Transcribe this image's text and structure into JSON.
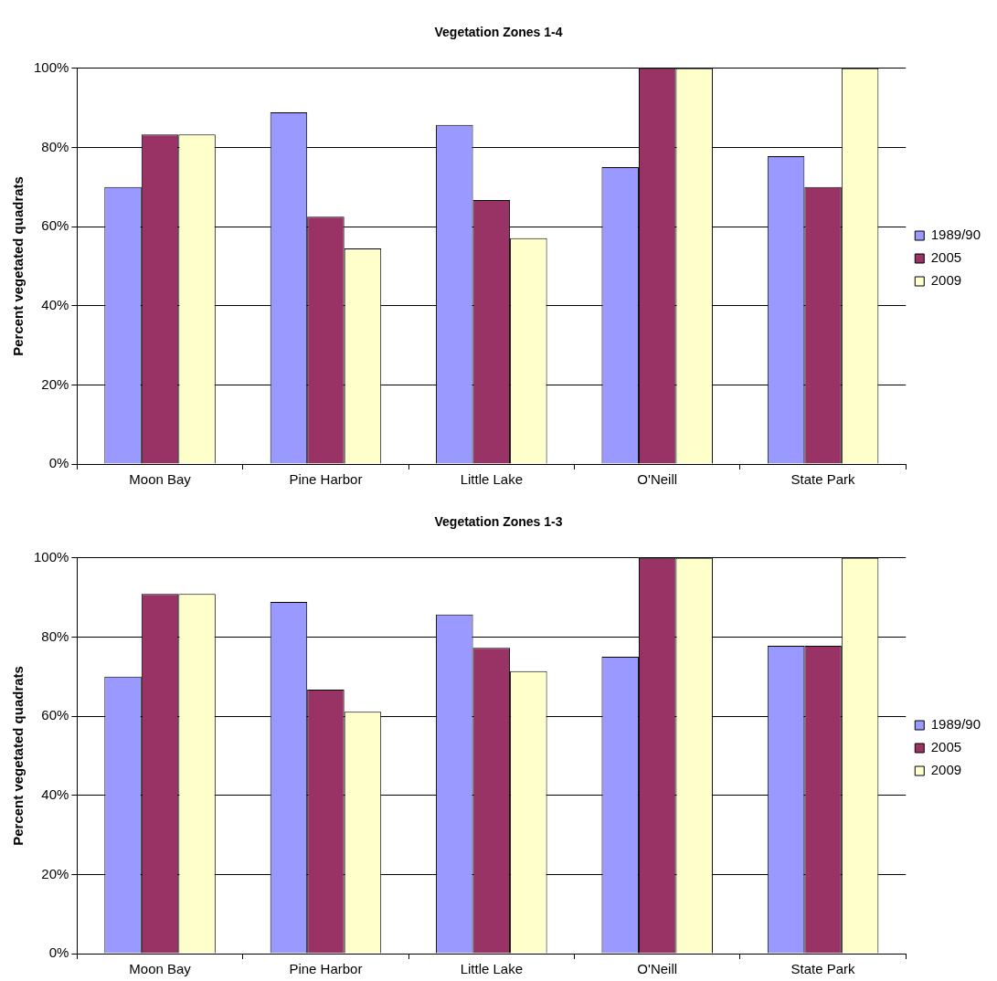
{
  "chart_data": [
    {
      "type": "bar",
      "title": "Vegetation Zones 1-4",
      "ylabel": "Percent vegetated quadrats",
      "categories": [
        "Moon Bay",
        "Pine Harbor",
        "Little Lake",
        "O'Neill",
        "State Park"
      ],
      "series": [
        {
          "name": "1989/90",
          "color": "#9999ff",
          "values": [
            70,
            88.9,
            85.7,
            75,
            77.8
          ]
        },
        {
          "name": "2005",
          "color": "#993366",
          "values": [
            83.3,
            62.5,
            66.7,
            100,
            70
          ]
        },
        {
          "name": "2009",
          "color": "#ffffcc",
          "values": [
            83.3,
            54.5,
            57.1,
            100,
            100
          ]
        }
      ],
      "ylim": [
        0,
        100
      ],
      "yticks": [
        {
          "value": 0,
          "label": "0%"
        },
        {
          "value": 20,
          "label": "20%"
        },
        {
          "value": 40,
          "label": "40%"
        },
        {
          "value": 60,
          "label": "60%"
        },
        {
          "value": 80,
          "label": "80%"
        },
        {
          "value": 100,
          "label": "100%"
        }
      ],
      "grid": "y",
      "legend": "right"
    },
    {
      "type": "bar",
      "title": "Vegetation Zones 1-3",
      "ylabel": "Percent vegetated quadrats",
      "categories": [
        "Moon Bay",
        "Pine Harbor",
        "Little Lake",
        "O'Neill",
        "State Park"
      ],
      "series": [
        {
          "name": "1989/90",
          "color": "#9999ff",
          "values": [
            70,
            88.9,
            85.7,
            75,
            77.8
          ]
        },
        {
          "name": "2005",
          "color": "#993366",
          "values": [
            90.9,
            66.7,
            77.3,
            100,
            77.8
          ]
        },
        {
          "name": "2009",
          "color": "#ffffcc",
          "values": [
            90.9,
            61.1,
            71.4,
            100,
            100
          ]
        }
      ],
      "ylim": [
        0,
        100
      ],
      "yticks": [
        {
          "value": 0,
          "label": "0%"
        },
        {
          "value": 20,
          "label": "20%"
        },
        {
          "value": 40,
          "label": "40%"
        },
        {
          "value": 60,
          "label": "60%"
        },
        {
          "value": 80,
          "label": "80%"
        },
        {
          "value": 100,
          "label": "100%"
        }
      ],
      "grid": "y",
      "legend": "right"
    }
  ]
}
